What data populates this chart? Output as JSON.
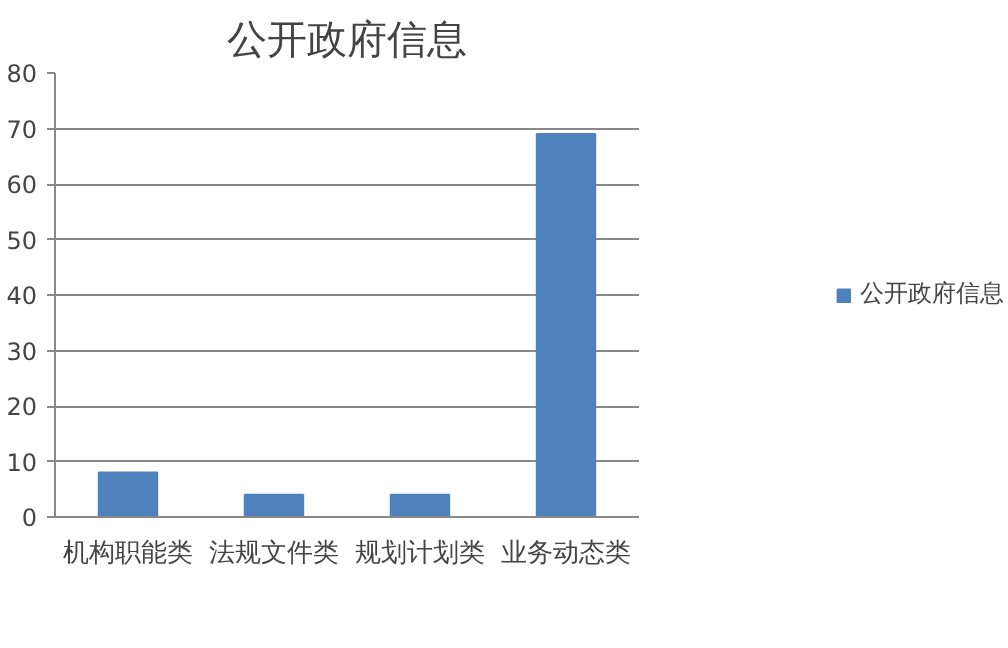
{
  "chart_data": {
    "type": "bar",
    "title": "公开政府信息",
    "categories": [
      "机构职能类",
      "法规文件类",
      "规划计划类",
      "业务动态类"
    ],
    "series": [
      {
        "name": "公开政府信息",
        "color": "#4f81bd",
        "values": [
          8,
          4,
          4,
          69
        ]
      }
    ],
    "ylim": [
      0,
      80
    ],
    "yticks": [
      0,
      10,
      20,
      30,
      40,
      50,
      60,
      70,
      80
    ],
    "grid": "y",
    "legend": "right"
  }
}
